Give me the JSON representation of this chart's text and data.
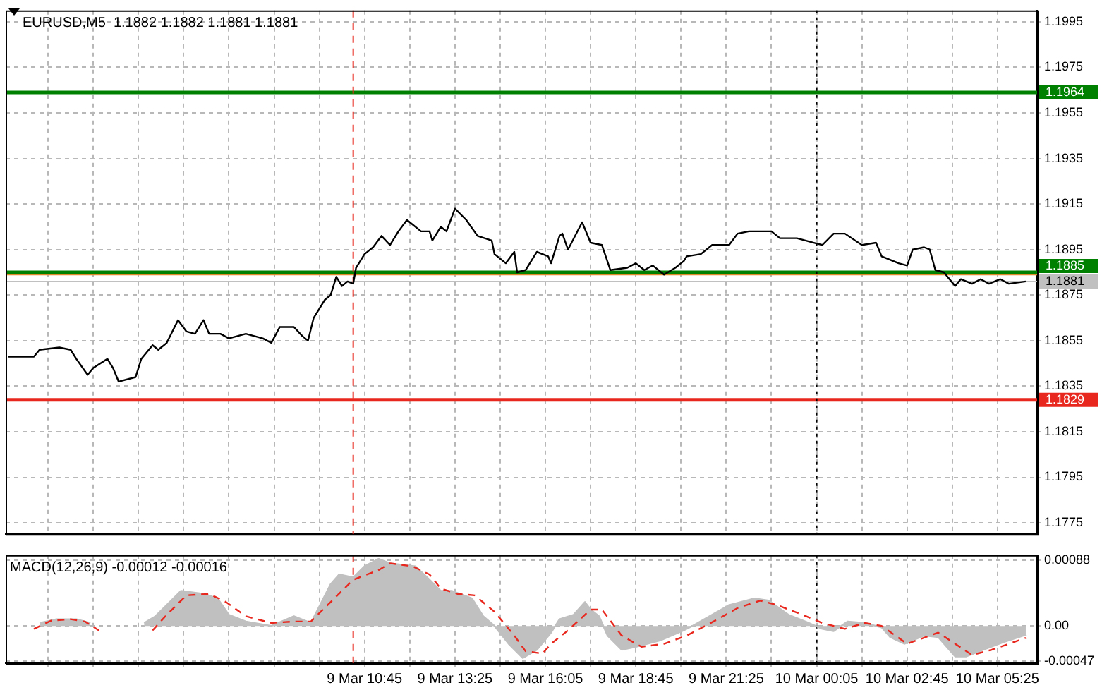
{
  "chart_data": [
    {
      "type": "line",
      "title": "EURUSD,M5  1.1882 1.1882 1.1881 1.1881",
      "grid": true,
      "tick_labels": "y",
      "xlim": [
        "--03-09T00:10",
        "--03-10T06:35"
      ],
      "xticks": [
        {
          "value": "--03-09T01:25",
          "label": null
        },
        {
          "value": "--03-09T02:45",
          "label": null
        },
        {
          "value": "--03-09T04:05",
          "label": null
        },
        {
          "value": "--03-09T05:25",
          "label": null
        },
        {
          "value": "--03-09T06:45",
          "label": null
        },
        {
          "value": "--03-09T08:05",
          "label": null
        },
        {
          "value": "--03-09T09:25",
          "label": null
        },
        {
          "value": "--03-09T10:45",
          "label": null
        },
        {
          "value": "--03-09T12:05",
          "label": null
        },
        {
          "value": "--03-09T13:25",
          "label": null
        },
        {
          "value": "--03-09T14:45",
          "label": null
        },
        {
          "value": "--03-09T16:05",
          "label": null
        },
        {
          "value": "--03-09T17:25",
          "label": null
        },
        {
          "value": "--03-09T18:45",
          "label": null
        },
        {
          "value": "--03-09T20:05",
          "label": null
        },
        {
          "value": "--03-09T21:25",
          "label": null
        },
        {
          "value": "--03-09T22:45",
          "label": null
        },
        {
          "value": "--03-10T00:05",
          "label": null
        },
        {
          "value": "--03-10T01:25",
          "label": null
        },
        {
          "value": "--03-10T02:45",
          "label": null
        },
        {
          "value": "--03-10T04:05",
          "label": null
        },
        {
          "value": "--03-10T05:25",
          "label": null
        }
      ],
      "ylim": [
        1.177,
        1.2
      ],
      "yticks": [
        1.1995,
        1.1975,
        1.1955,
        1.1935,
        1.1915,
        1.1895,
        1.1875,
        1.1855,
        1.1835,
        1.1815,
        1.1795,
        1.1775
      ],
      "ref_lines": [
        {
          "axis": "y",
          "value": 1.1964,
          "label": "1.1964",
          "color": "#008000"
        },
        {
          "axis": "y",
          "value": 1.1885,
          "label": "1.1885",
          "color": "#008000"
        },
        {
          "axis": "y",
          "value": 1.1884,
          "color": "#e08a2c"
        },
        {
          "axis": "y",
          "value": 1.1881,
          "label": "1.1881",
          "color": "#c0c0c0"
        },
        {
          "axis": "y",
          "value": 1.1829,
          "label": "1.1829",
          "color": "#e8281e"
        },
        {
          "axis": "x",
          "value": "--03-09T10:25",
          "color": "#e8281e",
          "line_style": "dashed"
        },
        {
          "axis": "x",
          "value": "--03-10T00:05",
          "color": "#000000",
          "line_style": "dotted"
        }
      ],
      "series": [
        {
          "color": "#000000",
          "line_style": "solid",
          "x": [
            "--03-09T00:15",
            "--03-09T01:00",
            "--03-09T01:10",
            "--03-09T01:45",
            "--03-09T02:05",
            "--03-09T02:15",
            "--03-09T02:35",
            "--03-09T02:45",
            "--03-09T03:10",
            "--03-09T03:20",
            "--03-09T03:30",
            "--03-09T04:00",
            "--03-09T04:10",
            "--03-09T04:30",
            "--03-09T04:40",
            "--03-09T04:55",
            "--03-09T05:15",
            "--03-09T05:30",
            "--03-09T05:45",
            "--03-09T06:00",
            "--03-09T06:10",
            "--03-09T06:30",
            "--03-09T06:45",
            "--03-09T07:15",
            "--03-09T07:45",
            "--03-09T08:00",
            "--03-09T08:15",
            "--03-09T08:40",
            "--03-09T08:55",
            "--03-09T09:05",
            "--03-09T09:15",
            "--03-09T09:35",
            "--03-09T09:45",
            "--03-09T09:55",
            "--03-09T10:05",
            "--03-09T10:15",
            "--03-09T10:25",
            "--03-09T10:30",
            "--03-09T10:45",
            "--03-09T11:00",
            "--03-09T11:15",
            "--03-09T11:30",
            "--03-09T11:45",
            "--03-09T12:00",
            "--03-09T12:25",
            "--03-09T12:40",
            "--03-09T12:45",
            "--03-09T13:00",
            "--03-09T13:10",
            "--03-09T13:25",
            "--03-09T13:45",
            "--03-09T14:05",
            "--03-09T14:30",
            "--03-09T14:35",
            "--03-09T14:55",
            "--03-09T15:10",
            "--03-09T15:15",
            "--03-09T15:30",
            "--03-09T15:50",
            "--03-09T16:10",
            "--03-09T16:15",
            "--03-09T16:30",
            "--03-09T16:35",
            "--03-09T16:45",
            "--03-09T17:10",
            "--03-09T17:25",
            "--03-09T17:45",
            "--03-09T18:00",
            "--03-09T18:30",
            "--03-09T18:45",
            "--03-09T19:00",
            "--03-09T19:15",
            "--03-09T19:35",
            "--03-09T19:55",
            "--03-09T20:10",
            "--03-09T20:15",
            "--03-09T20:40",
            "--03-09T21:00",
            "--03-09T21:30",
            "--03-09T21:45",
            "--03-09T22:05",
            "--03-09T22:45",
            "--03-09T23:00",
            "--03-09T23:30",
            "--03-10T00:00",
            "--03-10T00:15",
            "--03-10T00:35",
            "--03-10T00:55",
            "--03-10T01:25",
            "--03-10T01:50",
            "--03-10T02:00",
            "--03-10T02:30",
            "--03-10T02:45",
            "--03-10T02:55",
            "--03-10T03:15",
            "--03-10T03:25",
            "--03-10T03:35",
            "--03-10T03:50",
            "--03-10T04:10",
            "--03-10T04:20",
            "--03-10T04:40",
            "--03-10T04:55",
            "--03-10T05:10",
            "--03-10T05:30",
            "--03-10T05:45",
            "--03-10T06:15"
          ],
          "values": [
            1.1848,
            1.1848,
            1.1851,
            1.1852,
            1.1851,
            1.1847,
            1.184,
            1.1843,
            1.1847,
            1.1843,
            1.1837,
            1.1839,
            1.1847,
            1.1853,
            1.1851,
            1.1854,
            1.1864,
            1.1859,
            1.1858,
            1.1864,
            1.1858,
            1.1858,
            1.1856,
            1.1858,
            1.1856,
            1.1854,
            1.1861,
            1.1861,
            1.1857,
            1.1855,
            1.1865,
            1.1873,
            1.1875,
            1.1883,
            1.1879,
            1.1881,
            1.188,
            1.1887,
            1.1893,
            1.1896,
            1.1901,
            1.1897,
            1.1903,
            1.1908,
            1.1903,
            1.1903,
            1.1899,
            1.1905,
            1.1903,
            1.1913,
            1.1908,
            1.1901,
            1.1899,
            1.1893,
            1.1889,
            1.1894,
            1.1885,
            1.1886,
            1.1894,
            1.1892,
            1.1889,
            1.1901,
            1.1902,
            1.1895,
            1.1907,
            1.1898,
            1.1897,
            1.1886,
            1.1887,
            1.1889,
            1.1886,
            1.1888,
            1.1884,
            1.1887,
            1.189,
            1.1892,
            1.1893,
            1.1897,
            1.1897,
            1.1902,
            1.1903,
            1.1903,
            1.19,
            1.19,
            1.1898,
            1.1897,
            1.1902,
            1.1902,
            1.1897,
            1.1898,
            1.1892,
            1.1889,
            1.1888,
            1.1895,
            1.1896,
            1.1895,
            1.1886,
            1.1885,
            1.1879,
            1.1882,
            1.188,
            1.1882,
            1.188,
            1.1882,
            1.188,
            1.1881
          ]
        }
      ]
    },
    {
      "type": "line",
      "title": "MACD(12,26,9) -0.00012 -0.00016",
      "grid": true,
      "xlim": [
        "--03-09T00:10",
        "--03-10T06:35"
      ],
      "xticks": [
        {
          "value": "--03-09T01:25",
          "label": null
        },
        {
          "value": "--03-09T02:45",
          "label": null
        },
        {
          "value": "--03-09T04:05",
          "label": null
        },
        {
          "value": "--03-09T05:25",
          "label": null
        },
        {
          "value": "--03-09T06:45",
          "label": null
        },
        {
          "value": "--03-09T08:05",
          "label": null
        },
        {
          "value": "--03-09T09:25",
          "label": null
        },
        {
          "value": "--03-09T10:45",
          "label": "9 Mar 10:45"
        },
        {
          "value": "--03-09T12:05",
          "label": null
        },
        {
          "value": "--03-09T13:25",
          "label": "9 Mar 13:25"
        },
        {
          "value": "--03-09T14:45",
          "label": null
        },
        {
          "value": "--03-09T16:05",
          "label": "9 Mar 16:05"
        },
        {
          "value": "--03-09T17:25",
          "label": null
        },
        {
          "value": "--03-09T18:45",
          "label": "9 Mar 18:45"
        },
        {
          "value": "--03-09T20:05",
          "label": null
        },
        {
          "value": "--03-09T21:25",
          "label": "9 Mar 21:25"
        },
        {
          "value": "--03-09T22:45",
          "label": null
        },
        {
          "value": "--03-10T00:05",
          "label": "10 Mar 00:05"
        },
        {
          "value": "--03-10T01:25",
          "label": null
        },
        {
          "value": "--03-10T02:45",
          "label": "10 Mar 02:45"
        },
        {
          "value": "--03-10T04:05",
          "label": null
        },
        {
          "value": "--03-10T05:25",
          "label": "10 Mar 05:25"
        }
      ],
      "ylim": [
        -0.0005,
        0.00095
      ],
      "yticks": [
        0.00088,
        {
          "value": 0,
          "label": "0.00"
        },
        -0.00047
      ],
      "ref_lines": [
        {
          "axis": "x",
          "value": "--03-09T10:25",
          "color": "#e8281e",
          "line_style": "dashed"
        },
        {
          "axis": "x",
          "value": "--03-10T00:05",
          "color": "#000000",
          "line_style": "dotted"
        }
      ],
      "series": [
        {
          "type": "area",
          "color": "#c0c0c0",
          "x": [
            "--03-09T01:10",
            "--03-09T01:40",
            "--03-09T02:15",
            "--03-09T02:40",
            "--03-09T03:30",
            "--03-09T04:15",
            "--03-09T04:35",
            "--03-09T05:20",
            "--03-09T06:00",
            "--03-09T06:25",
            "--03-09T06:45",
            "--03-09T07:15",
            "--03-09T08:00",
            "--03-09T08:40",
            "--03-09T09:10",
            "--03-09T09:45",
            "--03-09T10:00",
            "--03-09T10:25",
            "--03-09T10:45",
            "--03-09T11:10",
            "--03-09T11:30",
            "--03-09T12:15",
            "--03-09T12:40",
            "--03-09T13:00",
            "--03-09T13:20",
            "--03-09T13:55",
            "--03-09T14:15",
            "--03-09T14:35",
            "--03-09T15:00",
            "--03-09T15:25",
            "--03-09T15:50",
            "--03-09T16:15",
            "--03-09T16:30",
            "--03-09T16:55",
            "--03-09T17:15",
            "--03-09T17:25",
            "--03-09T17:40",
            "--03-09T17:55",
            "--03-09T18:20",
            "--03-09T18:45",
            "--03-09T19:30",
            "--03-09T20:10",
            "--03-09T20:25",
            "--03-09T21:00",
            "--03-09T21:30",
            "--03-09T22:15",
            "--03-09T22:40",
            "--03-09T23:15",
            "--03-09T23:45",
            "--03-10T00:15",
            "--03-10T00:35",
            "--03-10T01:00",
            "--03-10T01:30",
            "--03-10T02:00",
            "--03-10T02:15",
            "--03-10T02:40",
            "--03-10T03:15",
            "--03-10T03:40",
            "--03-10T04:10",
            "--03-10T04:30",
            "--03-10T05:00",
            "--03-10T05:35",
            "--03-10T06:15"
          ],
          "values": [
            4e-05,
            9e-05,
            9e-05,
            4e-05,
            null,
            4e-05,
            0.00013,
            0.00047,
            0.00043,
            0.00037,
            0.00015,
            6e-05,
            0,
            0.00013,
            4e-05,
            0.00056,
            0.00069,
            0.00065,
            0.0008,
            0.0009,
            0.00084,
            0.0008,
            0.00062,
            0.00047,
            0.00047,
            0.00037,
            0.00013,
            0,
            -0.00024,
            -0.00043,
            -0.00032,
            -9e-05,
            9e-05,
            0.00015,
            0.00032,
            0.00022,
            0.00013,
            -0.00013,
            -0.00032,
            -0.00028,
            -0.00019,
            -6e-05,
            0,
            0.00015,
            0.00028,
            0.00037,
            0.00034,
            0.00015,
            6e-05,
            -4e-05,
            -7e-05,
            6e-05,
            4e-05,
            -2e-05,
            -0.00015,
            -0.00024,
            -0.00013,
            -0.00015,
            -0.00041,
            -0.00041,
            -0.00032,
            -0.00022,
            -0.00012
          ]
        },
        {
          "type": "line",
          "color": "#e8281e",
          "line_style": "dashed",
          "x": [
            "--03-09T01:00",
            "--03-09T01:30",
            "--03-09T02:05",
            "--03-09T02:30",
            "--03-09T02:55",
            "--03-09T03:40",
            "--03-09T04:30",
            "--03-09T04:55",
            "--03-09T05:30",
            "--03-09T06:10",
            "--03-09T06:40",
            "--03-09T07:15",
            "--03-09T08:00",
            "--03-09T08:40",
            "--03-09T09:10",
            "--03-09T09:45",
            "--03-09T10:25",
            "--03-09T11:10",
            "--03-09T11:30",
            "--03-09T12:10",
            "--03-09T12:40",
            "--03-09T13:00",
            "--03-09T13:30",
            "--03-09T14:00",
            "--03-09T14:35",
            "--03-09T15:10",
            "--03-09T15:30",
            "--03-09T16:00",
            "--03-09T16:15",
            "--03-09T16:45",
            "--03-09T17:25",
            "--03-09T17:45",
            "--03-09T18:20",
            "--03-09T18:55",
            "--03-09T19:35",
            "--03-09T20:15",
            "--03-09T21:10",
            "--03-09T21:45",
            "--03-09T22:25",
            "--03-09T22:55",
            "--03-09T23:40",
            "--03-10T00:15",
            "--03-10T00:55",
            "--03-10T01:30",
            "--03-10T02:00",
            "--03-10T02:45",
            "--03-10T03:40",
            "--03-10T04:00",
            "--03-10T04:40",
            "--03-10T05:15",
            "--03-10T06:15"
          ],
          "values": [
            -4e-05,
            7e-05,
            9e-05,
            6e-05,
            -6e-05,
            null,
            -6e-05,
            0.00015,
            0.00041,
            0.00043,
            0.00032,
            0.00013,
            4e-05,
            6e-05,
            6e-05,
            0.00032,
            0.00062,
            0.00075,
            0.00084,
            0.0008,
            0.00069,
            0.0005,
            0.00043,
            0.00041,
            0.00019,
            -0.00013,
            -0.00034,
            -0.00037,
            -0.00024,
            -6e-05,
            0.00022,
            0.00022,
            -0.00013,
            -0.00028,
            -0.00024,
            -0.00013,
            9e-05,
            0.00024,
            0.00034,
            0.00028,
            0.00015,
            4e-05,
            -4e-05,
            4e-05,
            0,
            -0.00024,
            -9e-05,
            -0.00019,
            -0.00039,
            -0.00032,
            -0.00016
          ]
        }
      ]
    }
  ]
}
